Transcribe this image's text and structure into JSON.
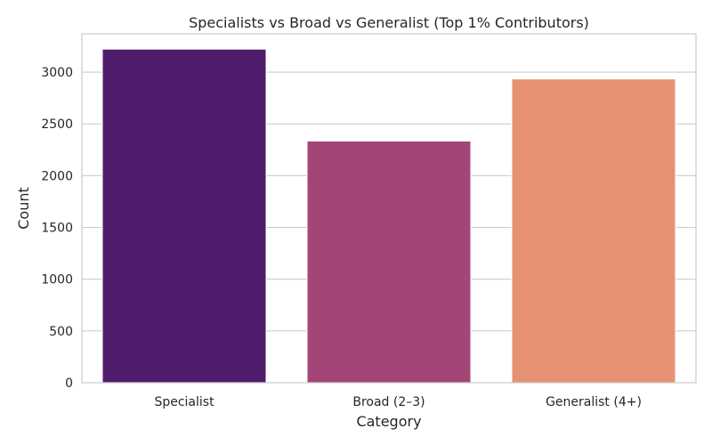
{
  "chart_data": {
    "type": "bar",
    "title": "Specialists vs Broad vs Generalist (Top 1% Contributors)",
    "xlabel": "Category",
    "ylabel": "Count",
    "categories": [
      "Specialist",
      "Broad (2–3)",
      "Generalist (4+)"
    ],
    "values": [
      3222,
      2334,
      2934
    ],
    "colors": [
      "#4f1c6c",
      "#a44577",
      "#e69273"
    ],
    "ylim": [
      0,
      3370
    ],
    "yticks": [
      0,
      500,
      1000,
      1500,
      2000,
      2500,
      3000
    ],
    "grid": true
  }
}
